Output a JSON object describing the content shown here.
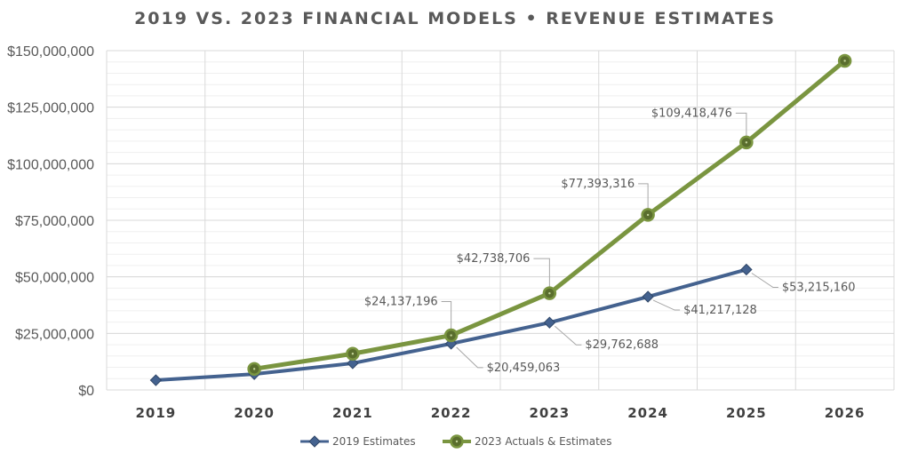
{
  "chart_data": {
    "type": "line",
    "title": "2019 VS. 2023 FINANCIAL MODELS • REVENUE ESTIMATES",
    "categories": [
      "2019",
      "2020",
      "2021",
      "2022",
      "2023",
      "2024",
      "2025",
      "2026"
    ],
    "ylim": [
      0,
      150000000
    ],
    "yticks": [
      0,
      25000000,
      50000000,
      75000000,
      100000000,
      125000000,
      150000000
    ],
    "ytick_labels": [
      "$0",
      "$25,000,000",
      "$50,000,000",
      "$75,000,000",
      "$100,000,000",
      "$125,000,000",
      "$150,000,000"
    ],
    "grid": true,
    "legend_position": "bottom",
    "series": [
      {
        "name": "2019 Estimates",
        "color": "#44628f",
        "marker": "diamond",
        "values": [
          4300000,
          7000000,
          11800000,
          20459063,
          29762688,
          41217128,
          53215160,
          null
        ],
        "data_labels": [
          null,
          null,
          null,
          "$20,459,063",
          "$29,762,688",
          "$41,217,128",
          "$53,215,160",
          null
        ]
      },
      {
        "name": "2023 Actuals & Estimates",
        "color": "#7a9540",
        "marker": "circle",
        "values": [
          null,
          9300000,
          16000000,
          24137196,
          42738706,
          77393316,
          109418476,
          145500000
        ],
        "data_labels": [
          null,
          null,
          null,
          "$24,137,196",
          "$42,738,706",
          "$77,393,316",
          "$109,418,476",
          null
        ]
      }
    ]
  }
}
